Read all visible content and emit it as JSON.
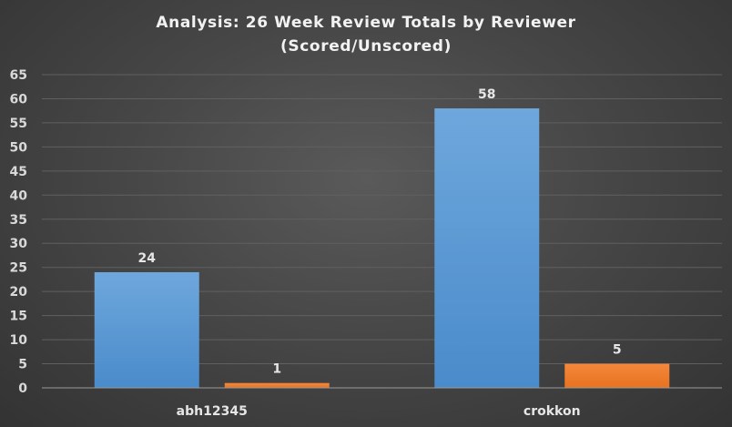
{
  "chart_data": {
    "type": "bar",
    "title_lines": [
      "Analysis:  26 Week Review Totals  by Reviewer",
      "(Scored/Unscored)"
    ],
    "categories": [
      "abh12345",
      "crokkon"
    ],
    "series": [
      {
        "values": [
          24,
          58
        ],
        "color": "#5b9bd5"
      },
      {
        "values": [
          1,
          5
        ],
        "color": "#ed7d31"
      }
    ],
    "ylim": [
      0,
      65
    ],
    "yticks": [
      0,
      5,
      10,
      15,
      20,
      25,
      30,
      35,
      40,
      45,
      50,
      55,
      60,
      65
    ],
    "grid": true,
    "data_labels": true,
    "background": "#404040"
  }
}
